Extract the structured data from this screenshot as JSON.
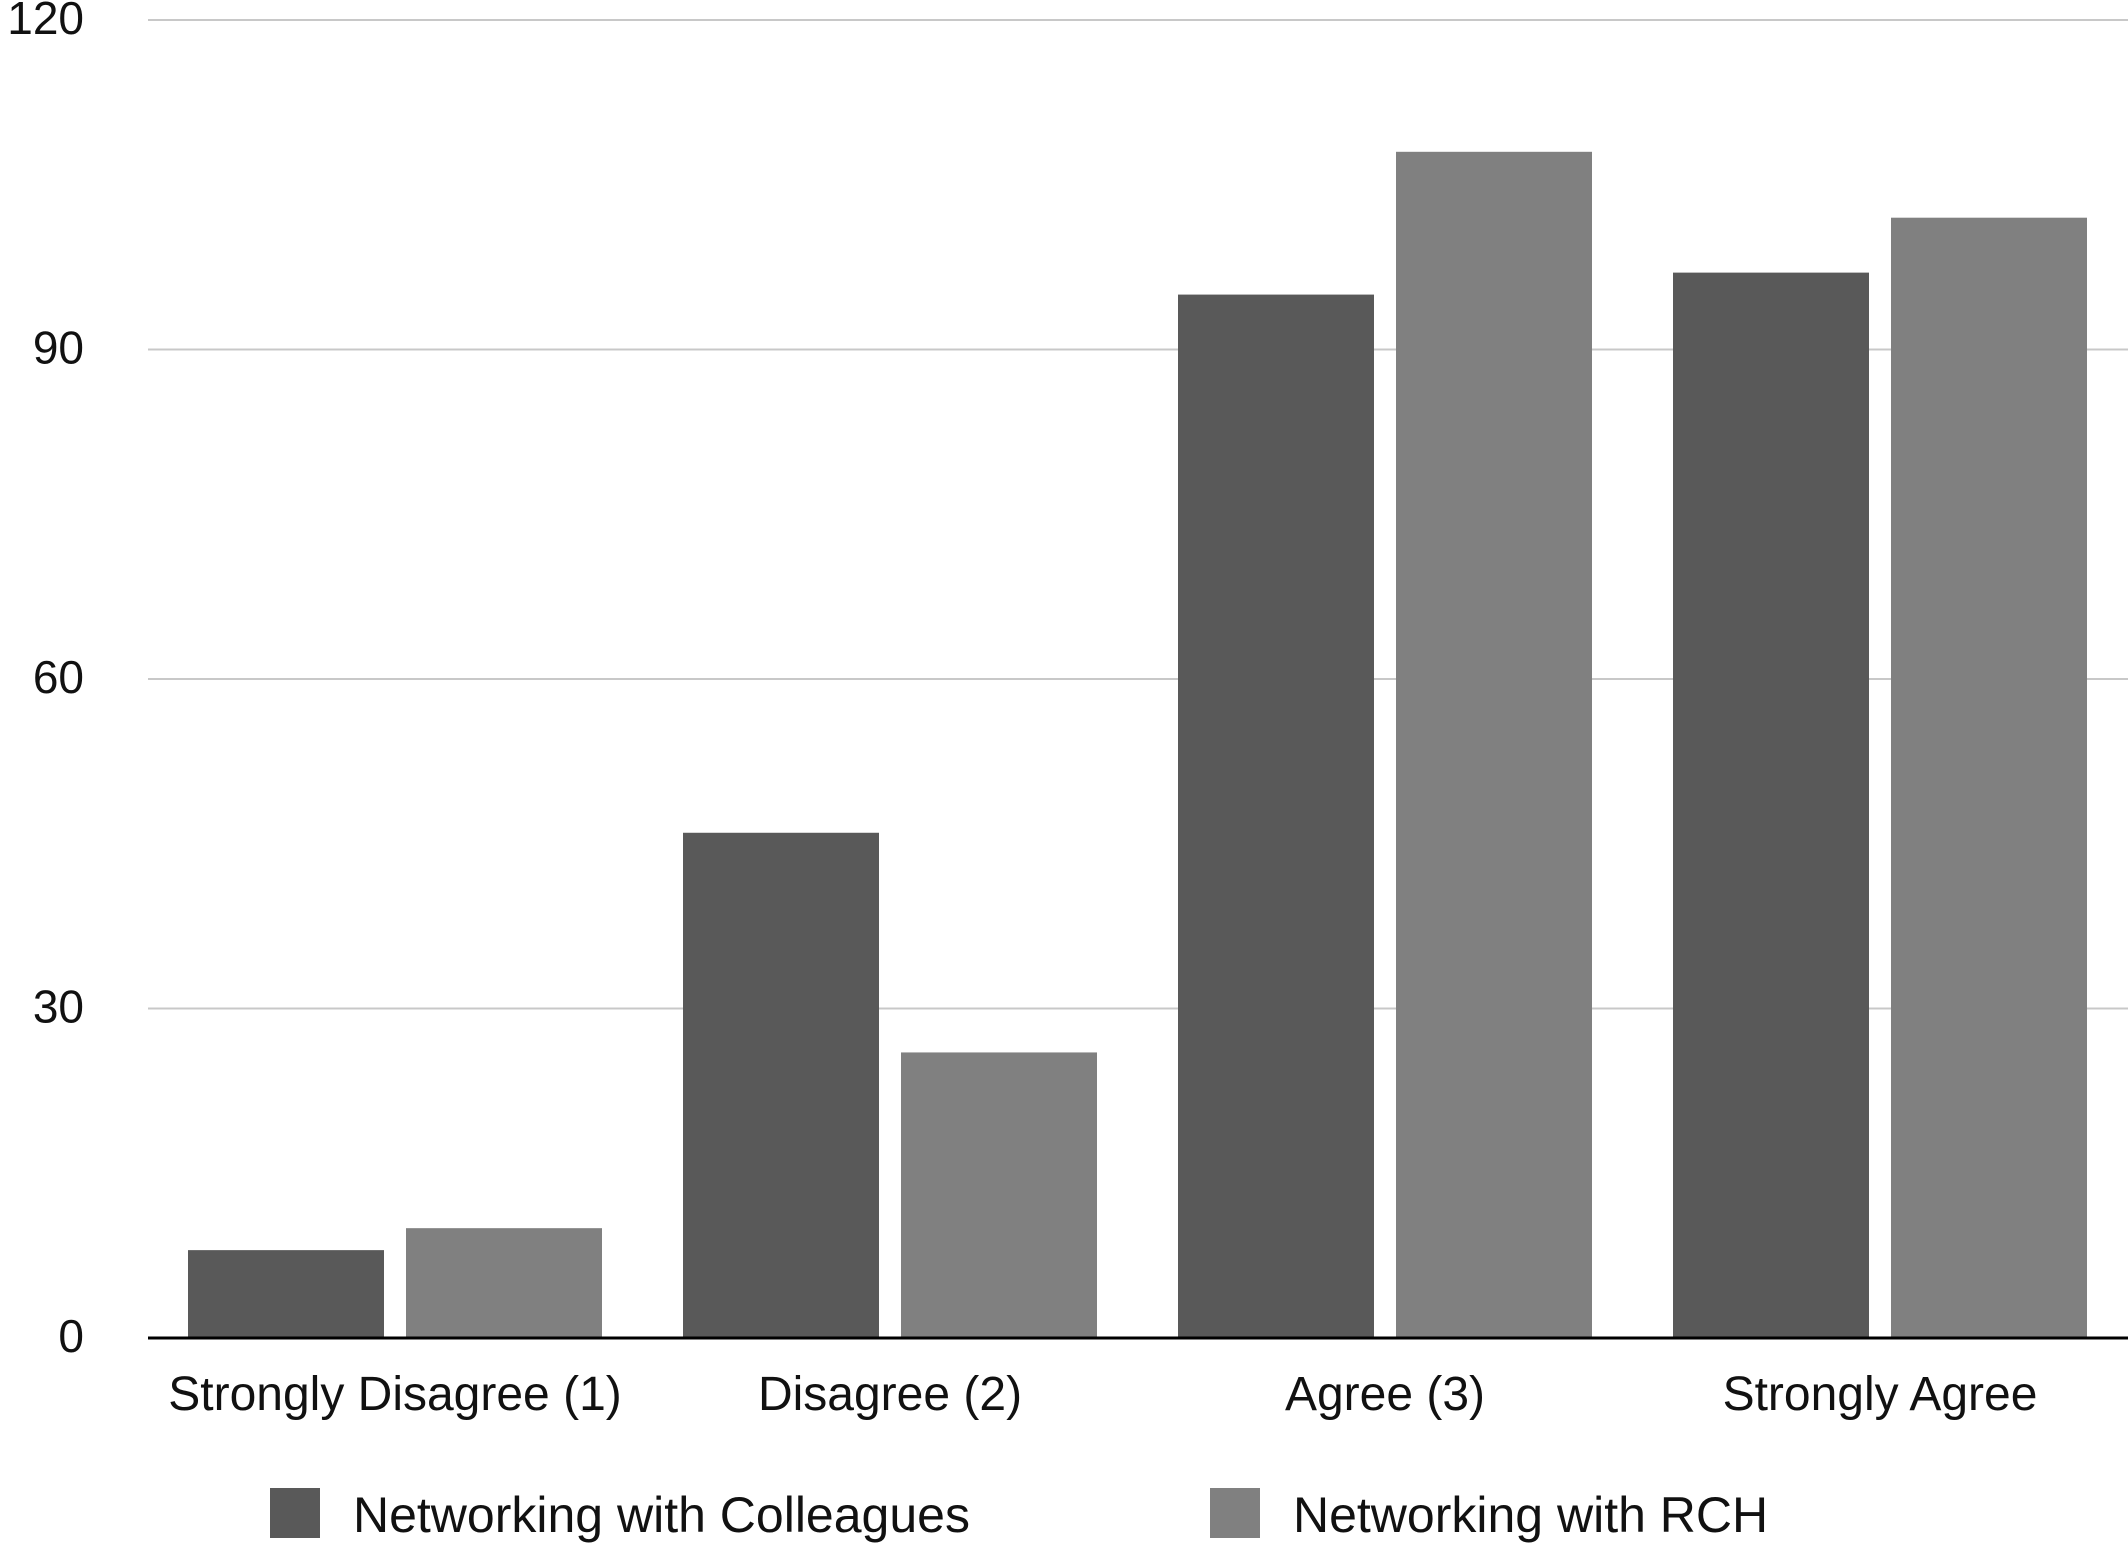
{
  "chart_data": {
    "type": "bar",
    "title": "",
    "xlabel": "",
    "ylabel": "",
    "categories": [
      "Strongly Disagree (1)",
      "Disagree (2)",
      "Agree (3)",
      "Strongly Agree"
    ],
    "series": [
      {
        "name": "Networking with Colleagues",
        "values": [
          8,
          46,
          95,
          97
        ],
        "color": "#595959"
      },
      {
        "name": "Networking with RCH",
        "values": [
          10,
          26,
          108,
          102
        ],
        "color": "#808080"
      }
    ],
    "ylim": [
      0,
      120
    ],
    "yticks": [
      0,
      30,
      60,
      90,
      120
    ],
    "grid": true,
    "legend_position": "bottom"
  }
}
